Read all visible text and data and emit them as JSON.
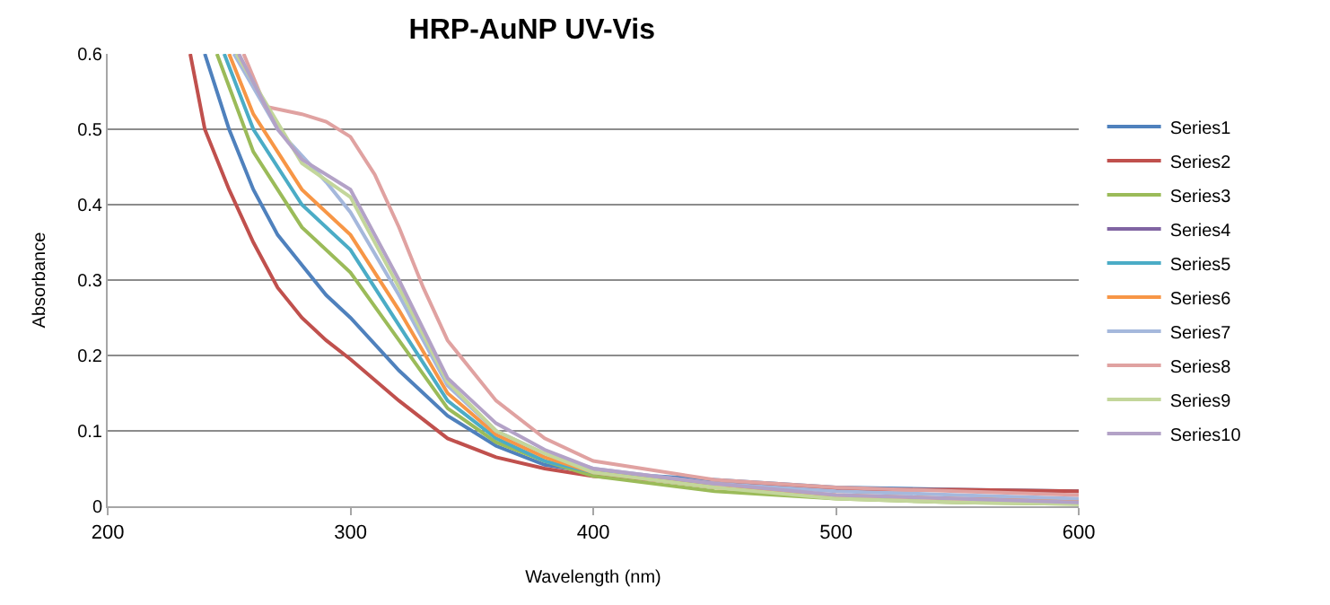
{
  "chart_data": {
    "type": "line",
    "title": "HRP-AuNP UV-Vis",
    "xlabel": "Wavelength (nm)",
    "ylabel": "Absorbance",
    "xlim": [
      200,
      600
    ],
    "xticks": [
      200,
      300,
      400,
      500,
      600
    ],
    "ylim": [
      0,
      0.6
    ],
    "yticks": [
      0,
      0.1,
      0.2,
      0.3,
      0.4,
      0.5,
      0.6
    ],
    "grid": "y",
    "legend": "right",
    "marker": "none",
    "line_style": "solid",
    "series": [
      {
        "name": "Series1",
        "color": "#4f81bd",
        "x": [
          240,
          250,
          260,
          270,
          280,
          290,
          300,
          320,
          340,
          360,
          380,
          400,
          450,
          500,
          550,
          600
        ],
        "values": [
          0.6,
          0.5,
          0.42,
          0.36,
          0.32,
          0.28,
          0.25,
          0.18,
          0.12,
          0.08,
          0.055,
          0.045,
          0.035,
          0.025,
          0.022,
          0.02
        ]
      },
      {
        "name": "Series2",
        "color": "#c0504d",
        "x": [
          234,
          240,
          250,
          260,
          270,
          280,
          290,
          300,
          320,
          340,
          360,
          380,
          400,
          450,
          500,
          550,
          600
        ],
        "values": [
          0.6,
          0.5,
          0.42,
          0.35,
          0.29,
          0.25,
          0.22,
          0.195,
          0.14,
          0.09,
          0.065,
          0.05,
          0.04,
          0.03,
          0.022,
          0.022,
          0.02
        ]
      },
      {
        "name": "Series3",
        "color": "#9bbb59",
        "x": [
          245,
          260,
          280,
          300,
          320,
          340,
          360,
          380,
          400,
          450,
          500,
          550,
          600
        ],
        "values": [
          0.6,
          0.47,
          0.37,
          0.31,
          0.22,
          0.13,
          0.085,
          0.06,
          0.04,
          0.02,
          0.01,
          0.005,
          0.003
        ]
      },
      {
        "name": "Series4",
        "color": "#8064a2"
      },
      {
        "name": "Series5",
        "color": "#4bacc6",
        "x": [
          248,
          260,
          280,
          300,
          320,
          340,
          360,
          380,
          400,
          450
        ],
        "values": [
          0.6,
          0.5,
          0.4,
          0.34,
          0.24,
          0.14,
          0.09,
          0.06,
          0.045,
          0.025
        ]
      },
      {
        "name": "Series6",
        "color": "#f79646",
        "x": [
          250,
          260,
          280,
          300,
          320,
          340,
          360,
          380,
          400,
          450,
          500,
          550,
          600
        ],
        "values": [
          0.6,
          0.52,
          0.42,
          0.36,
          0.26,
          0.15,
          0.095,
          0.065,
          0.045,
          0.025,
          0.015,
          0.01,
          0.008
        ]
      },
      {
        "name": "Series7",
        "color": "#a5b8dc",
        "x": [
          252,
          270,
          290,
          300,
          320,
          340,
          360,
          380,
          400,
          450,
          500,
          550,
          600
        ],
        "values": [
          0.6,
          0.5,
          0.43,
          0.39,
          0.28,
          0.16,
          0.1,
          0.07,
          0.05,
          0.03,
          0.02,
          0.015,
          0.01
        ]
      },
      {
        "name": "Series8",
        "color": "#e0a2a1",
        "x": [
          256,
          265,
          280,
          290,
          300,
          310,
          320,
          330,
          340,
          360,
          380,
          400,
          450,
          500,
          550,
          600
        ],
        "values": [
          0.6,
          0.53,
          0.52,
          0.51,
          0.49,
          0.44,
          0.37,
          0.29,
          0.22,
          0.14,
          0.09,
          0.06,
          0.035,
          0.025,
          0.02,
          0.015
        ]
      },
      {
        "name": "Series9",
        "color": "#c3d69b",
        "x": [
          253,
          280,
          300,
          320,
          340,
          360,
          380,
          400,
          450,
          500,
          550,
          600
        ],
        "values": [
          0.6,
          0.455,
          0.41,
          0.29,
          0.165,
          0.1,
          0.07,
          0.045,
          0.025,
          0.01,
          0.005,
          0.003
        ]
      },
      {
        "name": "Series10",
        "color": "#b3a2c7",
        "x": [
          254,
          270,
          280,
          300,
          320,
          340,
          360,
          380,
          400,
          450,
          500,
          550,
          600
        ],
        "values": [
          0.6,
          0.5,
          0.46,
          0.42,
          0.3,
          0.17,
          0.11,
          0.075,
          0.05,
          0.03,
          0.015,
          0.01,
          0.005
        ]
      }
    ]
  }
}
